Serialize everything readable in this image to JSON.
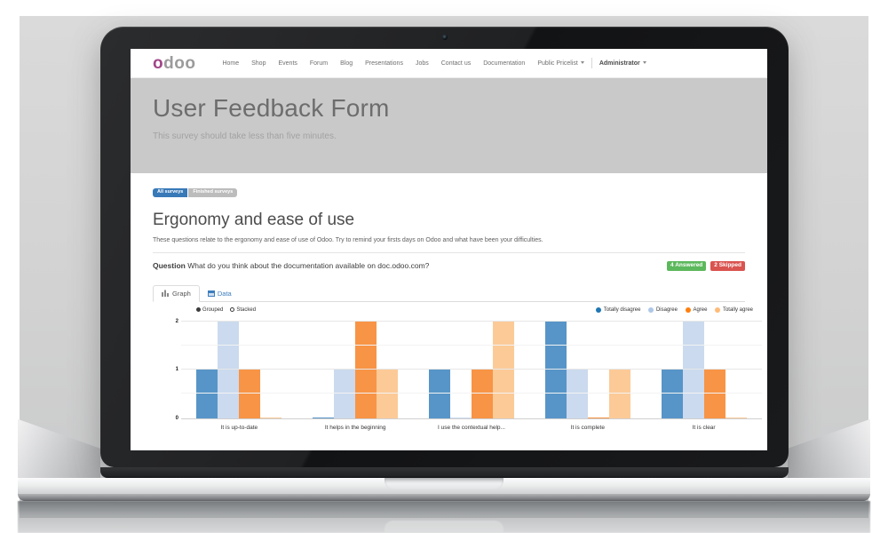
{
  "nav": {
    "logo_first": "o",
    "logo_rest": "doo",
    "items": [
      "Home",
      "Shop",
      "Events",
      "Forum",
      "Blog",
      "Presentations",
      "Jobs",
      "Contact us",
      "Documentation"
    ],
    "pricelist_dropdown": "Public Pricelist",
    "user_dropdown": "Administrator"
  },
  "hero": {
    "title": "User Feedback Form",
    "subtitle": "This survey should take less than five minutes."
  },
  "filters": {
    "all_label": "All surveys",
    "finished_label": "Finished surveys"
  },
  "section": {
    "title": "Ergonomy and ease of use",
    "description": "These questions relate to the ergonomy and ease of use of Odoo. Try to remind your firsts days on Odoo and what have been your difficulties."
  },
  "question": {
    "label": "Question",
    "text": "What do you think about the documentation available on doc.odoo.com?",
    "answered_badge": "4 Answered",
    "skipped_badge": "2 Skipped"
  },
  "tabs": {
    "graph_label": "Graph",
    "data_label": "Data"
  },
  "controls": {
    "grouped_label": "Grouped",
    "stacked_label": "Stacked",
    "selected": "Grouped"
  },
  "colors": {
    "odoo_purple": "#a24689",
    "hero_background": "#c9c9c9",
    "answered_green": "#5cb85c",
    "skipped_red": "#d9534f",
    "filter_blue": "#3879b8",
    "filter_gray": "#bcbcbc",
    "link_blue": "#3c7ebf"
  },
  "chart_data": {
    "type": "bar",
    "title": "",
    "xlabel": "",
    "ylabel": "",
    "categories": [
      "It is up-to-date",
      "It helps in the beginning",
      "I use the contextual help...",
      "It is complete",
      "It is clear"
    ],
    "series": [
      {
        "name": "Totally disagree",
        "legend_color": "#1f77b4",
        "bar_color": "#5795c8",
        "values": [
          1,
          0,
          1,
          2,
          1
        ]
      },
      {
        "name": "Disagree",
        "legend_color": "#aec7e8",
        "bar_color": "#cbdaee",
        "values": [
          2,
          1,
          0,
          1,
          2
        ]
      },
      {
        "name": "Agree",
        "legend_color": "#ff7f0e",
        "bar_color": "#f89445",
        "values": [
          1,
          2,
          1,
          0,
          1
        ]
      },
      {
        "name": "Totally agree",
        "legend_color": "#ffbb78",
        "bar_color": "#fcca97",
        "values": [
          0,
          1,
          2,
          1,
          0
        ]
      }
    ],
    "ylim": [
      0,
      2
    ],
    "yticks": [
      0,
      1,
      2
    ],
    "grid": true,
    "legend_position": "top-right",
    "mode_options": [
      "Grouped",
      "Stacked"
    ]
  }
}
